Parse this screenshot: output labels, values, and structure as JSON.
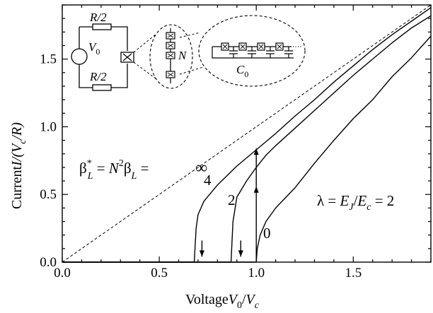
{
  "chart_data": {
    "type": "line",
    "xlabel": {
      "prefix": "Voltage",
      "num": "V",
      "num_sub": "0",
      "slash": "/",
      "den": "V",
      "den_sub": "c"
    },
    "ylabel": {
      "prefix": "Current",
      "I": "I",
      "rest": "/(V",
      "sub": "c",
      "tail": "/R)"
    },
    "xlim": [
      0.0,
      1.9
    ],
    "ylim": [
      0.0,
      1.9
    ],
    "x_ticks": [
      "0.0",
      "0.5",
      "1.0",
      "1.5"
    ],
    "x_tick_values": [
      0.0,
      0.5,
      1.0,
      1.5
    ],
    "y_ticks": [
      "0.0",
      "0.5",
      "1.0",
      "1.5"
    ],
    "y_tick_values": [
      0.0,
      0.5,
      1.0,
      1.5
    ],
    "grid": false,
    "series": [
      {
        "label": "0",
        "style": "solid",
        "x": [
          0.0,
          1.0,
          1.0,
          1.005,
          1.02,
          1.05,
          1.1,
          1.2,
          1.3,
          1.4,
          1.5,
          1.6,
          1.7,
          1.8,
          1.9
        ],
        "y": [
          0.0,
          0.0,
          0.0,
          0.1,
          0.2,
          0.3,
          0.4,
          0.55,
          0.73,
          0.9,
          1.06,
          1.2,
          1.37,
          1.51,
          1.67
        ]
      },
      {
        "label": "2",
        "style": "solid",
        "x": [
          0.0,
          0.87,
          0.875,
          0.88,
          0.9,
          0.95,
          1.0,
          1.05,
          1.1,
          1.2,
          1.3,
          1.4,
          1.5,
          1.6,
          1.7,
          1.8,
          1.9
        ],
        "y": [
          0.0,
          0.0,
          0.15,
          0.3,
          0.48,
          0.6,
          0.7,
          0.79,
          0.86,
          0.99,
          1.12,
          1.25,
          1.38,
          1.5,
          1.62,
          1.73,
          1.82
        ]
      },
      {
        "label": "4",
        "style": "solid",
        "x": [
          0.0,
          0.68,
          0.685,
          0.69,
          0.7,
          0.73,
          0.8,
          0.9,
          1.0,
          1.1,
          1.2,
          1.3,
          1.4,
          1.5,
          1.6,
          1.7,
          1.8,
          1.9
        ],
        "y": [
          0.0,
          0.0,
          0.12,
          0.25,
          0.35,
          0.45,
          0.57,
          0.71,
          0.83,
          0.95,
          1.08,
          1.2,
          1.33,
          1.45,
          1.57,
          1.68,
          1.78,
          1.88
        ]
      },
      {
        "label": "",
        "style": "dashed",
        "x": [
          0.0,
          1.9
        ],
        "y": [
          0.0,
          1.9
        ]
      }
    ],
    "arrows": [
      {
        "direction": "up",
        "x": 1.0,
        "y_from": 0.0,
        "y_to": 0.56
      },
      {
        "direction": "up",
        "x": 1.0,
        "y_from": 0.56,
        "y_to": 0.84
      },
      {
        "direction": "down",
        "x": 0.92,
        "y_from": 0.16,
        "y_to": 0.04
      },
      {
        "direction": "down",
        "x": 0.72,
        "y_from": 0.16,
        "y_to": 0.04
      }
    ],
    "annotations": {
      "beta": {
        "b1": "β",
        "sup1": "*",
        "sub1": "L",
        "eq1": " = ",
        "N": "N",
        "sup2": "2",
        "b2": "β",
        "sub2": "L",
        "eq2": " =",
        "inf": "∞"
      },
      "lambda": {
        "lam": "λ = ",
        "E1": "E",
        "s1": "J",
        "slash": "/",
        "E2": "E",
        "s2": "c",
        "tail": " = 2"
      }
    },
    "inset": {
      "resistor_top": "R/2",
      "resistor_bottom": "R/2",
      "source": "V",
      "source_sub": "0",
      "array_label": "N",
      "capacitance": "C",
      "capacitance_sub": "0"
    }
  }
}
